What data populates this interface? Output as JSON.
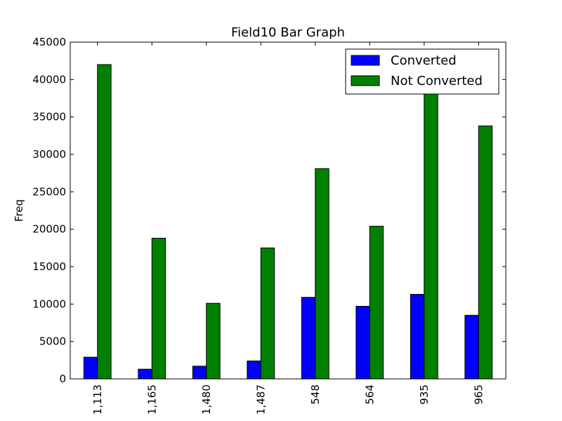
{
  "chart_data": {
    "type": "bar",
    "title": "Field10 Bar Graph",
    "xlabel": "",
    "ylabel": "Freq",
    "ylim": [
      0,
      45000
    ],
    "yticks": [
      0,
      5000,
      10000,
      15000,
      20000,
      25000,
      30000,
      35000,
      40000,
      45000
    ],
    "categories": [
      "1,113",
      "1,165",
      "1,480",
      "1,487",
      "548",
      "564",
      "935",
      "965"
    ],
    "series": [
      {
        "name": "Converted",
        "color": "#0000ff",
        "values": [
          2900,
          1300,
          1700,
          2400,
          10900,
          9700,
          11300,
          8500
        ]
      },
      {
        "name": "Not Converted",
        "color": "#008000",
        "values": [
          42000,
          18800,
          10100,
          17500,
          28100,
          20400,
          38200,
          33800
        ]
      }
    ],
    "legend": "top-right",
    "grid": false
  }
}
